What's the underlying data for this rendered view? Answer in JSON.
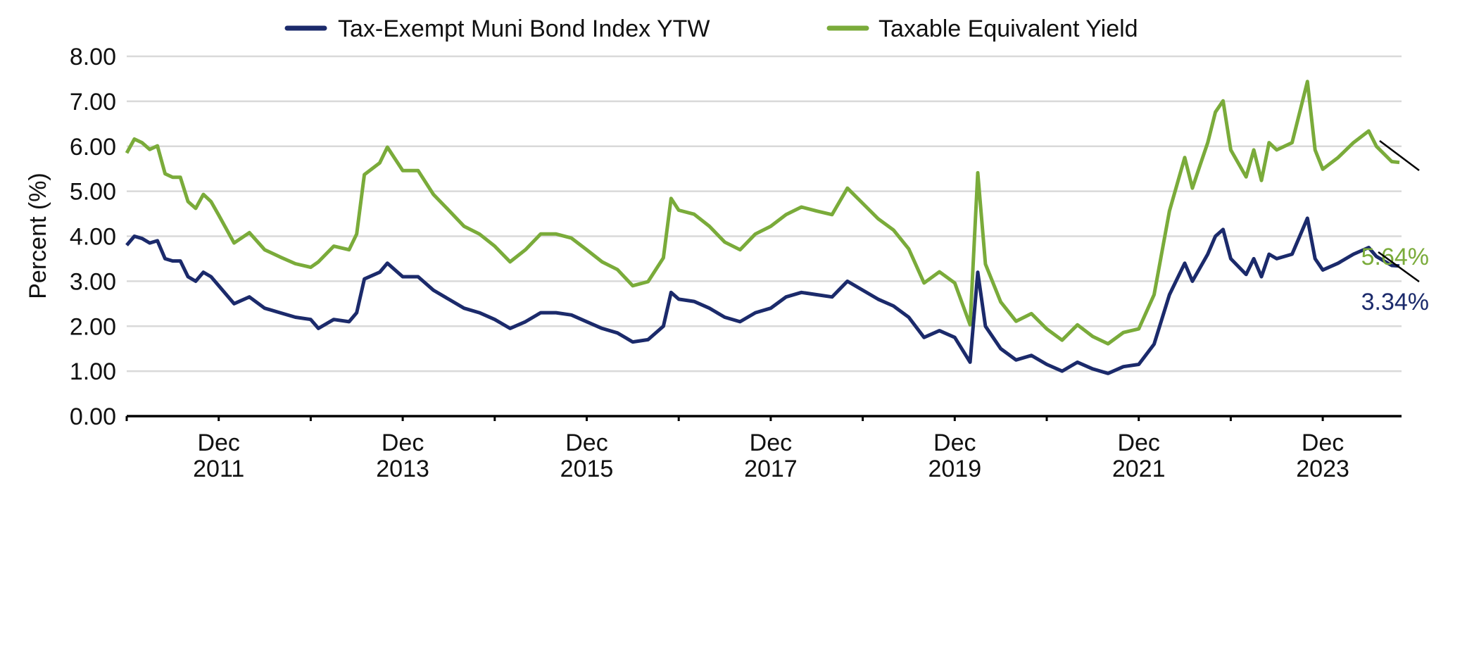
{
  "chart_data": {
    "type": "line",
    "title": "",
    "ylabel": "Percent (%)",
    "xlabel": "",
    "ylim": [
      0,
      8
    ],
    "yticks": [
      "0.00",
      "1.00",
      "2.00",
      "3.00",
      "4.00",
      "5.00",
      "6.00",
      "7.00",
      "8.00"
    ],
    "xrange": [
      "2010-12",
      "2024-10"
    ],
    "xticks": [
      {
        "top": "Dec",
        "bottom": "2011",
        "date": "2011-12"
      },
      {
        "top": "Dec",
        "bottom": "2013",
        "date": "2013-12"
      },
      {
        "top": "Dec",
        "bottom": "2015",
        "date": "2015-12"
      },
      {
        "top": "Dec",
        "bottom": "2017",
        "date": "2017-12"
      },
      {
        "top": "Dec",
        "bottom": "2019",
        "date": "2019-12"
      },
      {
        "top": "Dec",
        "bottom": "2021",
        "date": "2021-12"
      },
      {
        "top": "Dec",
        "bottom": "2023",
        "date": "2023-12"
      }
    ],
    "minor_ticks": [
      "2010-12",
      "2012-12",
      "2014-12",
      "2016-12",
      "2018-12",
      "2020-12",
      "2022-12"
    ],
    "grid": true,
    "legend_position": "top",
    "x": [
      "2010-12",
      "2011-01",
      "2011-02",
      "2011-03",
      "2011-04",
      "2011-05",
      "2011-06",
      "2011-07",
      "2011-08",
      "2011-09",
      "2011-10",
      "2011-11",
      "2011-12",
      "2012-02",
      "2012-04",
      "2012-06",
      "2012-08",
      "2012-10",
      "2012-12",
      "2013-01",
      "2013-03",
      "2013-05",
      "2013-06",
      "2013-07",
      "2013-09",
      "2013-10",
      "2013-12",
      "2014-02",
      "2014-04",
      "2014-06",
      "2014-08",
      "2014-10",
      "2014-12",
      "2015-02",
      "2015-04",
      "2015-06",
      "2015-08",
      "2015-10",
      "2015-12",
      "2016-02",
      "2016-04",
      "2016-06",
      "2016-08",
      "2016-10",
      "2016-11",
      "2016-12",
      "2017-02",
      "2017-04",
      "2017-06",
      "2017-08",
      "2017-10",
      "2017-12",
      "2018-02",
      "2018-04",
      "2018-06",
      "2018-08",
      "2018-10",
      "2018-12",
      "2019-02",
      "2019-04",
      "2019-06",
      "2019-08",
      "2019-10",
      "2019-12",
      "2020-02",
      "2020-03",
      "2020-04",
      "2020-06",
      "2020-08",
      "2020-10",
      "2020-12",
      "2021-02",
      "2021-04",
      "2021-06",
      "2021-08",
      "2021-10",
      "2021-12",
      "2022-02",
      "2022-04",
      "2022-06",
      "2022-07",
      "2022-08",
      "2022-09",
      "2022-10",
      "2022-11",
      "2022-12",
      "2023-02",
      "2023-03",
      "2023-04",
      "2023-05",
      "2023-06",
      "2023-08",
      "2023-10",
      "2023-11",
      "2023-12",
      "2024-02",
      "2024-04",
      "2024-06",
      "2024-07",
      "2024-09",
      "2024-10"
    ],
    "series": [
      {
        "name": "Tax-Exempt Muni Bond Index YTW",
        "color": "#1b2a6b",
        "end_label": "3.34%",
        "values": [
          3.8,
          4.0,
          3.95,
          3.85,
          3.9,
          3.5,
          3.45,
          3.45,
          3.1,
          3.0,
          3.2,
          3.1,
          2.9,
          2.5,
          2.65,
          2.4,
          2.3,
          2.2,
          2.15,
          1.95,
          2.15,
          2.1,
          2.3,
          3.05,
          3.2,
          3.4,
          3.1,
          3.1,
          2.8,
          2.6,
          2.4,
          2.3,
          2.15,
          1.95,
          2.1,
          2.3,
          2.3,
          2.25,
          2.1,
          1.95,
          1.85,
          1.65,
          1.7,
          2.0,
          2.75,
          2.6,
          2.55,
          2.4,
          2.2,
          2.1,
          2.3,
          2.4,
          2.65,
          2.75,
          2.7,
          2.65,
          3.0,
          2.8,
          2.6,
          2.45,
          2.2,
          1.75,
          1.9,
          1.75,
          1.2,
          3.2,
          2.0,
          1.5,
          1.25,
          1.35,
          1.15,
          1.0,
          1.2,
          1.05,
          0.95,
          1.1,
          1.15,
          1.6,
          2.7,
          3.4,
          3.0,
          3.3,
          3.6,
          4.0,
          4.15,
          3.5,
          3.15,
          3.5,
          3.1,
          3.6,
          3.5,
          3.6,
          4.4,
          3.5,
          3.25,
          3.4,
          3.6,
          3.75,
          3.55,
          3.35,
          3.34
        ]
      },
      {
        "name": "Taxable Equivalent Yield",
        "color": "#7aab3a",
        "end_label": "5.64%",
        "values": [
          5.85,
          6.16,
          6.08,
          5.93,
          6.01,
          5.39,
          5.31,
          5.31,
          4.77,
          4.62,
          4.93,
          4.77,
          4.47,
          3.85,
          4.08,
          3.7,
          3.54,
          3.39,
          3.31,
          3.43,
          3.78,
          3.7,
          4.05,
          5.37,
          5.63,
          5.98,
          5.46,
          5.46,
          4.93,
          4.58,
          4.22,
          4.05,
          3.78,
          3.43,
          3.7,
          4.05,
          4.05,
          3.96,
          3.7,
          3.43,
          3.26,
          2.9,
          2.99,
          3.52,
          4.84,
          4.58,
          4.49,
          4.22,
          3.87,
          3.7,
          4.05,
          4.22,
          4.48,
          4.65,
          4.56,
          4.48,
          5.07,
          4.73,
          4.39,
          4.14,
          3.72,
          2.96,
          3.21,
          2.96,
          2.03,
          5.41,
          3.38,
          2.54,
          2.11,
          2.28,
          1.94,
          1.69,
          2.03,
          1.77,
          1.61,
          1.86,
          1.94,
          2.7,
          4.56,
          5.75,
          5.07,
          5.58,
          6.08,
          6.76,
          7.01,
          5.92,
          5.32,
          5.92,
          5.24,
          6.08,
          5.92,
          6.08,
          7.44,
          5.92,
          5.49,
          5.75,
          6.08,
          6.34,
          6.0,
          5.66,
          5.64
        ]
      }
    ]
  }
}
